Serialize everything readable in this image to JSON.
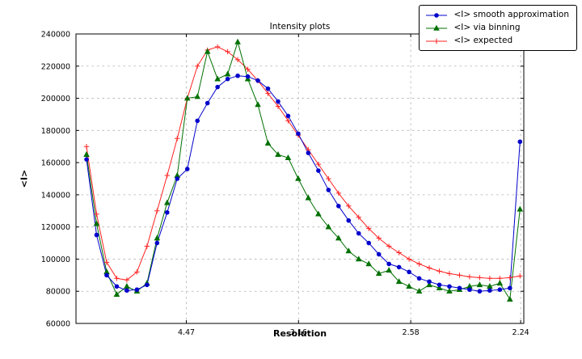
{
  "figure": {
    "title": "Intensity plots",
    "xlabel": "Resolution",
    "ylabel": "<I>"
  },
  "chart_data": {
    "type": "line",
    "title": "Intensity plots",
    "xlabel": "Resolution",
    "ylabel": "<I>",
    "grid": true,
    "legend_position": "upper right",
    "x_axis": {
      "min": 0.0008,
      "max": 0.2007,
      "ticks": [
        {
          "label": "4.47",
          "value": 0.05006
        },
        {
          "label": "3.16",
          "value": 0.10014
        },
        {
          "label": "2.58",
          "value": 0.15023
        },
        {
          "label": "2.24",
          "value": 0.1993
        }
      ]
    },
    "y_axis": {
      "min": 60000,
      "max": 240000,
      "ticks": [
        60000,
        80000,
        100000,
        120000,
        140000,
        160000,
        180000,
        200000,
        220000,
        240000
      ]
    },
    "x": [
      0.0055,
      0.01,
      0.0145,
      0.019,
      0.0235,
      0.028,
      0.0325,
      0.037,
      0.0415,
      0.046,
      0.0505,
      0.055,
      0.0595,
      0.064,
      0.0685,
      0.073,
      0.0775,
      0.082,
      0.0865,
      0.091,
      0.0955,
      0.1,
      0.1045,
      0.109,
      0.1135,
      0.118,
      0.1225,
      0.127,
      0.1315,
      0.136,
      0.1405,
      0.145,
      0.1495,
      0.154,
      0.1585,
      0.163,
      0.1675,
      0.172,
      0.1765,
      0.181,
      0.1855,
      0.19,
      0.1945,
      0.199
    ],
    "series": [
      {
        "name": "<I> smooth approximation",
        "color": "#0000cc",
        "marker": "circle",
        "values": [
          162000,
          115000,
          90000,
          83000,
          80500,
          81000,
          84000,
          110000,
          129000,
          150000,
          156000,
          186000,
          197000,
          207000,
          212000,
          214000,
          213500,
          211000,
          206000,
          198000,
          189000,
          178000,
          166000,
          155000,
          143000,
          133000,
          124000,
          116000,
          110000,
          103000,
          97000,
          95000,
          92000,
          88000,
          86000,
          84000,
          83000,
          82000,
          81000,
          80000,
          80500,
          81000,
          82000,
          173000
        ]
      },
      {
        "name": "<I> via binning",
        "color": "#007000",
        "marker": "triangle",
        "values": [
          165000,
          122000,
          92000,
          78000,
          83000,
          80000,
          85000,
          113000,
          135000,
          152000,
          200000,
          201000,
          229000,
          212000,
          215000,
          235000,
          212000,
          196000,
          172000,
          165000,
          163000,
          150000,
          138000,
          128000,
          120000,
          113000,
          105000,
          100000,
          97000,
          91000,
          93000,
          86000,
          83000,
          80000,
          84000,
          82000,
          80000,
          81000,
          83000,
          84000,
          83000,
          85000,
          75000,
          131000
        ]
      },
      {
        "name": "<I> expected",
        "color": "#ff2222",
        "marker": "plus",
        "values": [
          170000,
          128000,
          98000,
          88000,
          87000,
          92000,
          108000,
          130000,
          152000,
          175000,
          200000,
          220000,
          230000,
          232000,
          229000,
          224000,
          218000,
          211000,
          203000,
          195000,
          186000,
          177000,
          168000,
          159000,
          150000,
          141000,
          133000,
          126000,
          119000,
          113000,
          108000,
          104000,
          100000,
          97000,
          94500,
          92500,
          91000,
          90000,
          89000,
          88500,
          88000,
          88000,
          88500,
          89500
        ]
      }
    ]
  }
}
